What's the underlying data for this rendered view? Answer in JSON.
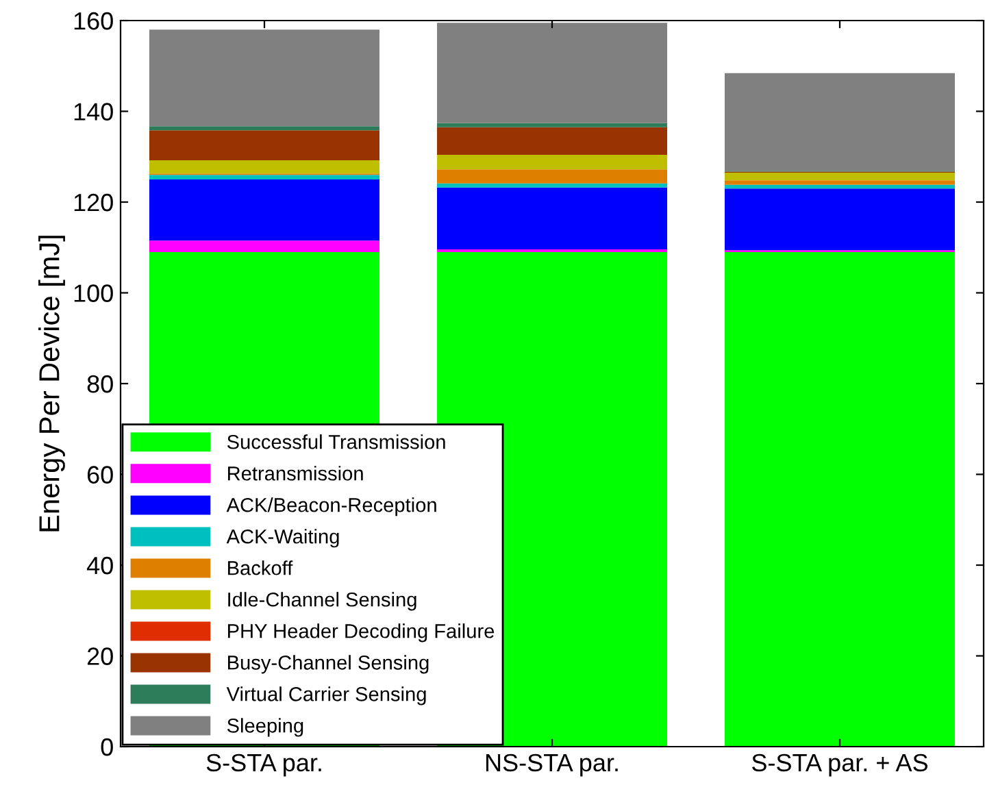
{
  "chart_data": {
    "type": "bar",
    "stacked": true,
    "ylabel": "Energy Per Device [mJ]",
    "categories": [
      "S-STA par.",
      "NS-STA par.",
      "S-STA par. + AS"
    ],
    "ylim": [
      0,
      160
    ],
    "yticks": [
      0,
      20,
      40,
      60,
      80,
      100,
      120,
      140,
      160
    ],
    "grid": false,
    "legend": "bottom left",
    "series": [
      {
        "name": "Successful Transmission",
        "color": "#00ff00",
        "values": [
          109,
          109,
          109
        ]
      },
      {
        "name": "Retransmission",
        "color": "#ff00ff",
        "values": [
          2.5,
          0.6,
          0.4
        ]
      },
      {
        "name": "ACK/Beacon-Reception",
        "color": "#0000ff",
        "values": [
          13.5,
          13.6,
          13.6
        ]
      },
      {
        "name": "ACK-Waiting",
        "color": "#00bfbf",
        "values": [
          1.0,
          0.9,
          0.8
        ]
      },
      {
        "name": "Backoff",
        "color": "#df7f00",
        "values": [
          0.3,
          3.1,
          1.0
        ]
      },
      {
        "name": "Idle-Channel Sensing",
        "color": "#bfbf00",
        "values": [
          2.9,
          3.2,
          1.7
        ]
      },
      {
        "name": "PHY Header Decoding Failure",
        "color": "#df2f00",
        "values": [
          0,
          0,
          0
        ]
      },
      {
        "name": "Busy-Channel Sensing",
        "color": "#993300",
        "values": [
          6.6,
          6.1,
          0.2
        ]
      },
      {
        "name": "Virtual Carrier Sensing",
        "color": "#2e7d5a",
        "values": [
          0.9,
          0.9,
          0.2
        ]
      },
      {
        "name": "Sleeping",
        "color": "#808080",
        "values": [
          21.3,
          22.1,
          21.5
        ]
      }
    ]
  }
}
